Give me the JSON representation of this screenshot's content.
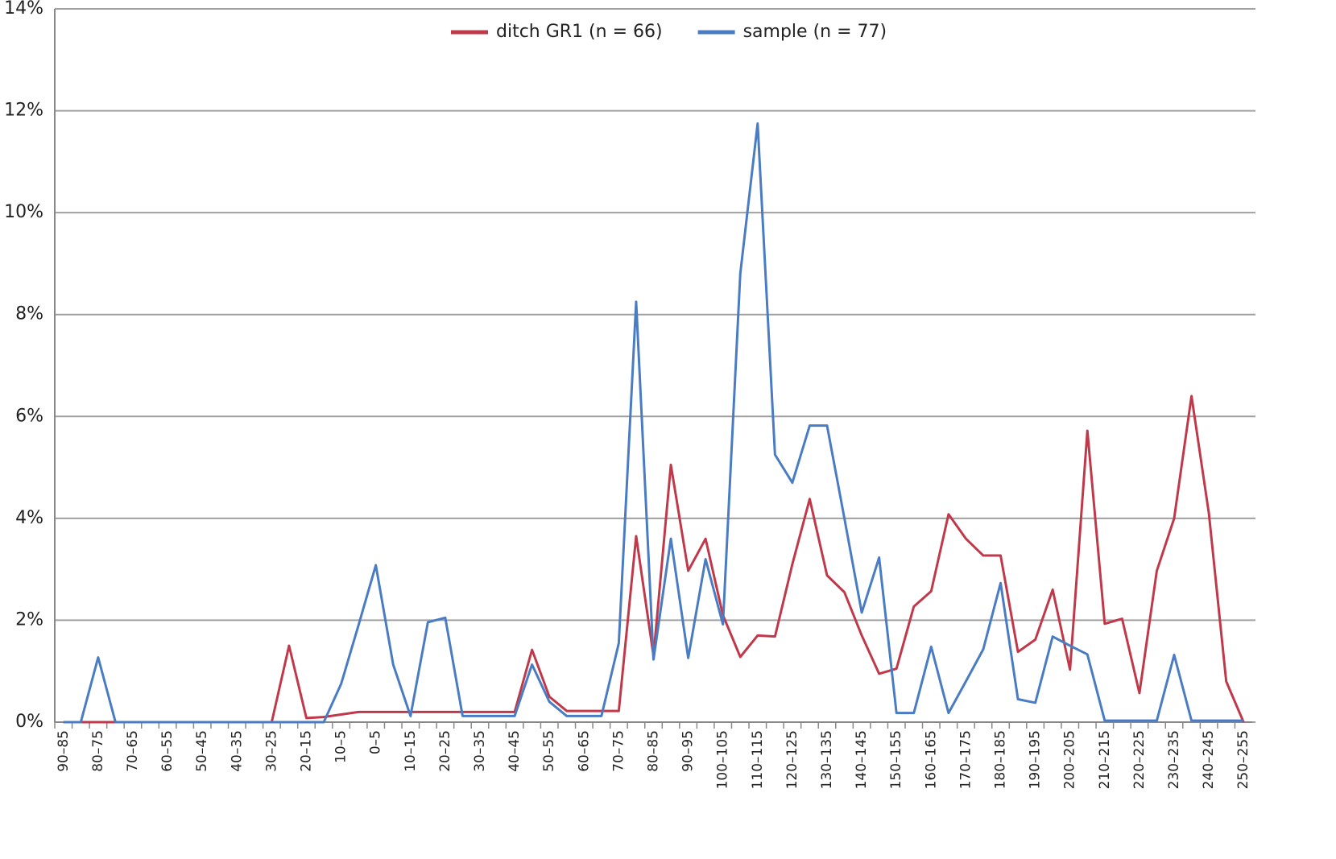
{
  "chart_data": {
    "type": "line",
    "categories": [
      "90–85",
      null,
      "80–75",
      null,
      "70–65",
      null,
      "60–55",
      null,
      "50–45",
      null,
      "40–35",
      null,
      "30–25",
      null,
      "20–15",
      null,
      "10–5",
      null,
      "0–5",
      null,
      "10–15",
      null,
      "20–25",
      null,
      "30–35",
      null,
      "40–45",
      null,
      "50–55",
      null,
      "60–65",
      null,
      "70–75",
      null,
      "80–85",
      null,
      "90–95",
      null,
      "100–105",
      null,
      "110–115",
      null,
      "120–125",
      null,
      "130–135",
      null,
      "140–145",
      null,
      "150–155",
      null,
      "160–165",
      null,
      "170–175",
      null,
      "180–185",
      null,
      "190–195",
      null,
      "200–205",
      null,
      "210–215",
      null,
      "220–225",
      null,
      "230–235",
      null,
      "240–245",
      null,
      "250–255"
    ],
    "series": [
      {
        "name": "ditch GR1 (n = 66)",
        "color": "#c0394a",
        "values": [
          0,
          0,
          0,
          0,
          0,
          0,
          0,
          0,
          0,
          0,
          0,
          0,
          0,
          1.5,
          0.08,
          0.1,
          0.15,
          0.2,
          0.2,
          0.2,
          0.2,
          0.2,
          0.2,
          0.2,
          0.2,
          0.2,
          0.2,
          1.42,
          0.5,
          0.22,
          0.22,
          0.22,
          0.22,
          3.65,
          1.3,
          5.05,
          2.97,
          3.6,
          2.1,
          1.28,
          1.7,
          1.68,
          3.1,
          4.38,
          2.88,
          2.55,
          1.7,
          0.95,
          1.05,
          2.27,
          2.57,
          4.08,
          3.6,
          3.27,
          3.27,
          1.38,
          1.62,
          2.6,
          1.03,
          5.72,
          1.93,
          2.03,
          0.57,
          2.97,
          4.0,
          6.4,
          4.1,
          0.8,
          0
        ]
      },
      {
        "name": "sample (n = 77)",
        "color": "#4a7cc4",
        "values": [
          0,
          0,
          1.27,
          0,
          0,
          0,
          0,
          0,
          0,
          0,
          0,
          0,
          0,
          0,
          0,
          0,
          0.75,
          1.9,
          3.08,
          1.13,
          0.12,
          1.96,
          2.05,
          0.12,
          0.12,
          0.12,
          0.12,
          1.13,
          0.4,
          0.12,
          0.12,
          0.12,
          1.55,
          8.25,
          1.23,
          3.6,
          1.26,
          3.2,
          1.92,
          8.8,
          11.75,
          5.25,
          4.7,
          5.82,
          5.82,
          4.0,
          2.15,
          3.23,
          0.18,
          0.18,
          1.48,
          0.18,
          0.8,
          1.43,
          2.73,
          0.45,
          0.38,
          1.68,
          1.5,
          1.33,
          0.03,
          0.03,
          0.03,
          0.03,
          1.32,
          0.03,
          0.03,
          0.03,
          0.03
        ]
      }
    ],
    "ylim": [
      0,
      14
    ],
    "yticks": [
      {
        "value": 0,
        "label": "0%"
      },
      {
        "value": 2,
        "label": "2%"
      },
      {
        "value": 4,
        "label": "4%"
      },
      {
        "value": 6,
        "label": "6%"
      },
      {
        "value": 8,
        "label": "8%"
      },
      {
        "value": 10,
        "label": "10%"
      },
      {
        "value": 12,
        "label": "12%"
      },
      {
        "value": 14,
        "label": "14%"
      }
    ],
    "grid": true,
    "legend": "top"
  }
}
